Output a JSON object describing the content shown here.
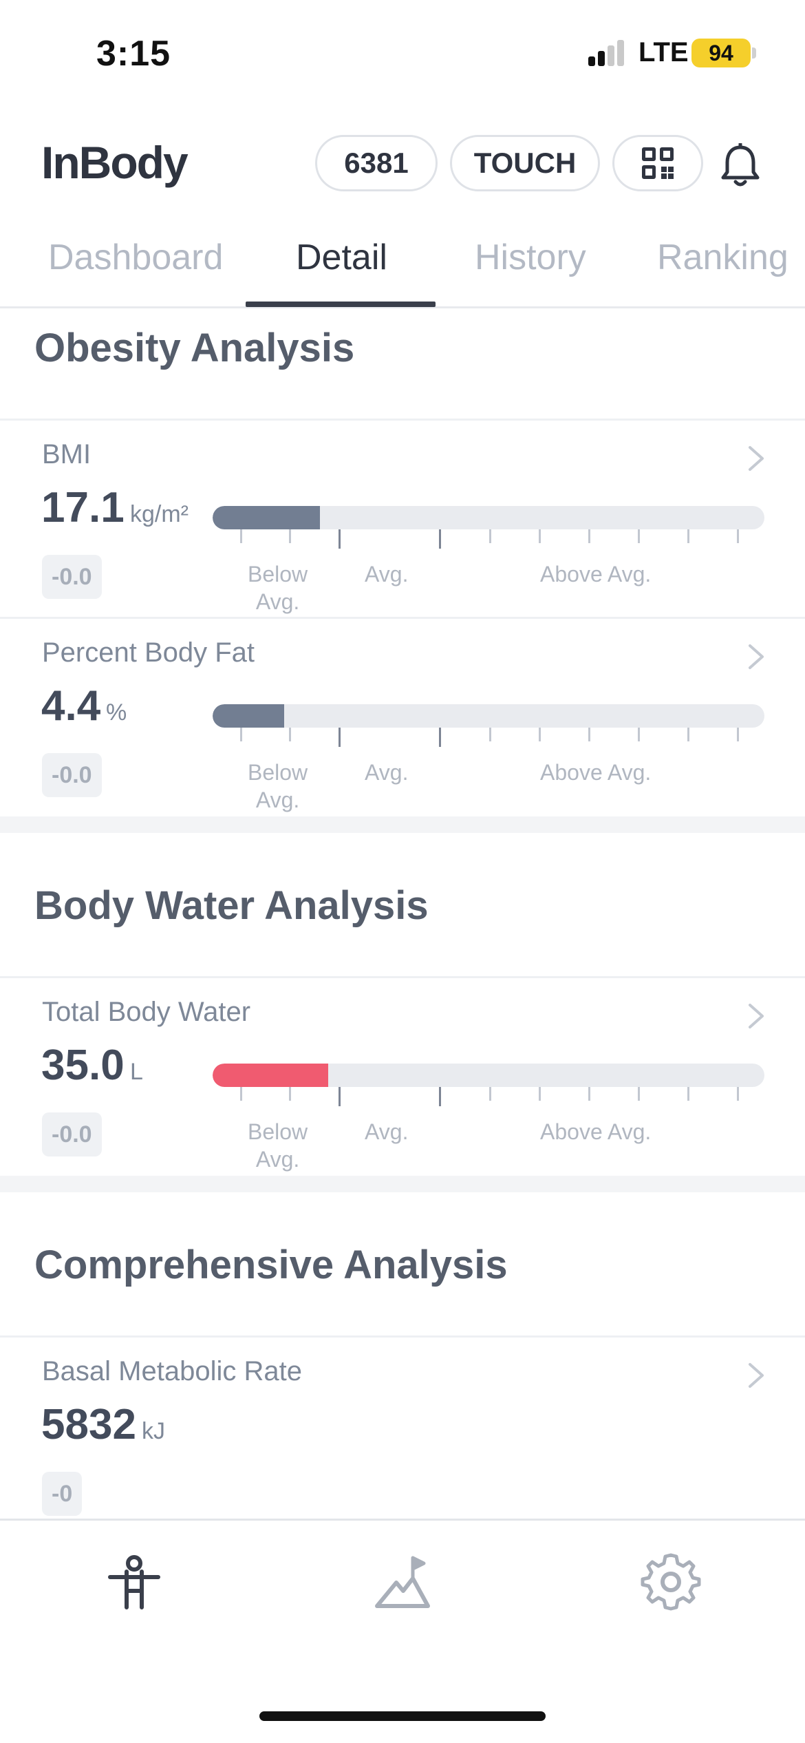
{
  "status_bar": {
    "time": "3:15",
    "network": "LTE",
    "battery": "94"
  },
  "header": {
    "logo": "InBody",
    "code_pill": "6381",
    "touch_pill": "TOUCH",
    "qr_icon": "qr-code-icon",
    "bell_icon": "bell-icon"
  },
  "tabs": [
    {
      "label": "Dashboard",
      "active": false
    },
    {
      "label": "Detail",
      "active": true
    },
    {
      "label": "History",
      "active": false
    },
    {
      "label": "Ranking",
      "active": false
    }
  ],
  "sections": [
    {
      "title": "Obesity Analysis",
      "metrics": [
        {
          "label": "BMI",
          "value": "17.1",
          "unit": "kg/m²",
          "change": "-0.0",
          "bar_fraction": 0.195,
          "bar_color": "#727e92"
        },
        {
          "label": "Percent Body Fat",
          "value": "4.4",
          "unit": "%",
          "change": "-0.0",
          "bar_fraction": 0.13,
          "bar_color": "#727e92"
        }
      ]
    },
    {
      "title": "Body Water Analysis",
      "metrics": [
        {
          "label": "Total Body Water",
          "value": "35.0",
          "unit": "L",
          "change": "-0.0",
          "bar_fraction": 0.21,
          "bar_color": "#f05b70"
        }
      ]
    },
    {
      "title": "Comprehensive Analysis",
      "metrics": [
        {
          "label": "Basal Metabolic Rate",
          "value": "5832",
          "unit": "kJ",
          "change": "-0"
        }
      ]
    }
  ],
  "scale_labels": {
    "below": "Below\nAvg.",
    "avg": "Avg.",
    "above": "Above Avg."
  },
  "bottom_nav": {
    "items": [
      "body-icon",
      "chart-flag-icon",
      "gear-icon"
    ]
  },
  "colors": {
    "accent": "#2f3440",
    "bar_gray": "#727e92",
    "bar_red": "#f05b70",
    "track": "#e9ebef"
  }
}
